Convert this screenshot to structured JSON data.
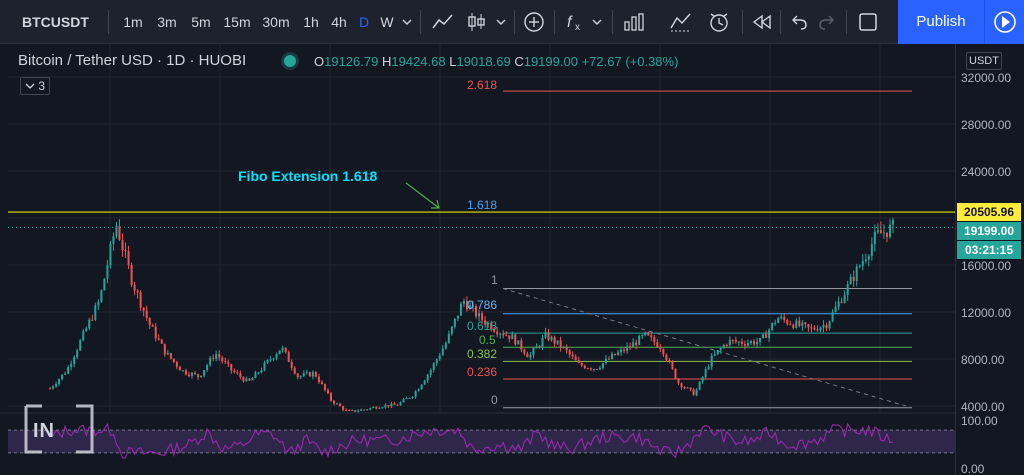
{
  "toolbar": {
    "symbol": "BTCUSDT",
    "intervals": [
      "1m",
      "3m",
      "5m",
      "15m",
      "30m",
      "1h",
      "4h",
      "D",
      "W"
    ],
    "active_interval": "D",
    "icons": [
      "chevron-down-icon",
      "line-chart-icon",
      "candles-icon",
      "chevron-down-icon",
      "add-indicator-icon",
      "fx-indicators-icon",
      "templates-icon",
      "compare-icon",
      "alert-icon",
      "replay-icon",
      "undo-icon",
      "redo-icon",
      "fullscreen-icon"
    ],
    "publish_label": "Publish"
  },
  "header": {
    "title": "Bitcoin / Tether USD · 1D · HUOBI",
    "open_key": "O",
    "open": "19126.79",
    "high_key": "H",
    "high": "19424.68",
    "low_key": "L",
    "low": "19018.69",
    "close_key": "C",
    "close": "19199.00",
    "change": "+72.67 (+0.38%)",
    "indicators_count": "3"
  },
  "axis": {
    "currency": "USDT",
    "labels": [
      "32000.00",
      "28000.00",
      "24000.00",
      "16000.00",
      "12000.00",
      "8000.00",
      "4000.00"
    ],
    "osc_labels": [
      "100.00",
      "0.00"
    ],
    "tag_level": "20505.96",
    "tag_price": "19199.00",
    "tag_countdown": "03:21:15"
  },
  "annotations": {
    "fibo_text": "Fibo Extension 1.618",
    "ext_2618": "2.618",
    "ext_1618": "1.618",
    "fib_levels": [
      "1",
      "0.786",
      "0.618",
      "0.5",
      "0.382",
      "0.236",
      "0"
    ]
  },
  "colors": {
    "background": "#131722",
    "up": "#26a69a",
    "down": "#ef5350",
    "level_line": "#e6e600",
    "oscillator": "#9c27b0",
    "accent": "#2962ff"
  },
  "watermark": {
    "text": "IN"
  },
  "chart_data": {
    "type": "candlestick",
    "price_axis_ticks": [
      4000,
      8000,
      12000,
      16000,
      20000,
      24000,
      28000,
      32000
    ],
    "horizontal_level": 20505.96,
    "current_price": 19199.0,
    "fibonacci_retracement": {
      "high": 14000,
      "low": 3850,
      "levels": [
        {
          "ratio": "1",
          "price": 14000
        },
        {
          "ratio": "0.786",
          "price": 11850
        },
        {
          "ratio": "0.618",
          "price": 10200
        },
        {
          "ratio": "0.5",
          "price": 9000
        },
        {
          "ratio": "0.382",
          "price": 7800
        },
        {
          "ratio": "0.236",
          "price": 6300
        },
        {
          "ratio": "0",
          "price": 3850
        }
      ]
    },
    "fibonacci_extension": [
      {
        "ratio": "1.618",
        "price": 20505.96
      },
      {
        "ratio": "2.618",
        "price": 30800
      }
    ],
    "approx_close_path": [
      5500,
      7000,
      10000,
      13000,
      19500,
      14500,
      11000,
      8500,
      7000,
      6500,
      8500,
      7000,
      6000,
      7500,
      9000,
      6500,
      6800,
      4500,
      3500,
      3700,
      4000,
      4100,
      5000,
      7000,
      9500,
      13000,
      11500,
      10500,
      9800,
      8200,
      10000,
      9000,
      7500,
      7200,
      8200,
      9000,
      10000,
      9000,
      6000,
      5000,
      8000,
      9500,
      9400,
      9500,
      11500,
      11000,
      10500,
      11000,
      13500,
      16000,
      18500,
      19199
    ],
    "oscillator": {
      "ylim": [
        0,
        100
      ],
      "band": [
        30,
        70
      ]
    }
  }
}
